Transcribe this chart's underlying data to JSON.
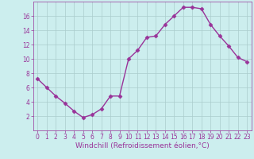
{
  "x": [
    0,
    1,
    2,
    3,
    4,
    5,
    6,
    7,
    8,
    9,
    10,
    11,
    12,
    13,
    14,
    15,
    16,
    17,
    18,
    19,
    20,
    21,
    22,
    23
  ],
  "y": [
    7.2,
    6.0,
    4.8,
    3.8,
    2.7,
    1.8,
    2.2,
    3.0,
    4.8,
    4.8,
    10.0,
    11.2,
    13.0,
    13.2,
    14.8,
    16.0,
    17.2,
    17.2,
    17.0,
    14.8,
    13.2,
    11.8,
    10.2,
    9.6
  ],
  "line_color": "#993399",
  "marker": "D",
  "marker_size": 2.5,
  "bg_color": "#cceeee",
  "grid_color": "#aacccc",
  "xlabel": "Windchill (Refroidissement éolien,°C)",
  "xlim": [
    -0.5,
    23.5
  ],
  "ylim": [
    0,
    18
  ],
  "yticks": [
    2,
    4,
    6,
    8,
    10,
    12,
    14,
    16
  ],
  "xticks": [
    0,
    1,
    2,
    3,
    4,
    5,
    6,
    7,
    8,
    9,
    10,
    11,
    12,
    13,
    14,
    15,
    16,
    17,
    18,
    19,
    20,
    21,
    22,
    23
  ],
  "tick_color": "#993399",
  "label_color": "#993399",
  "tick_fontsize": 5.5,
  "xlabel_fontsize": 6.5,
  "linewidth": 1.0
}
